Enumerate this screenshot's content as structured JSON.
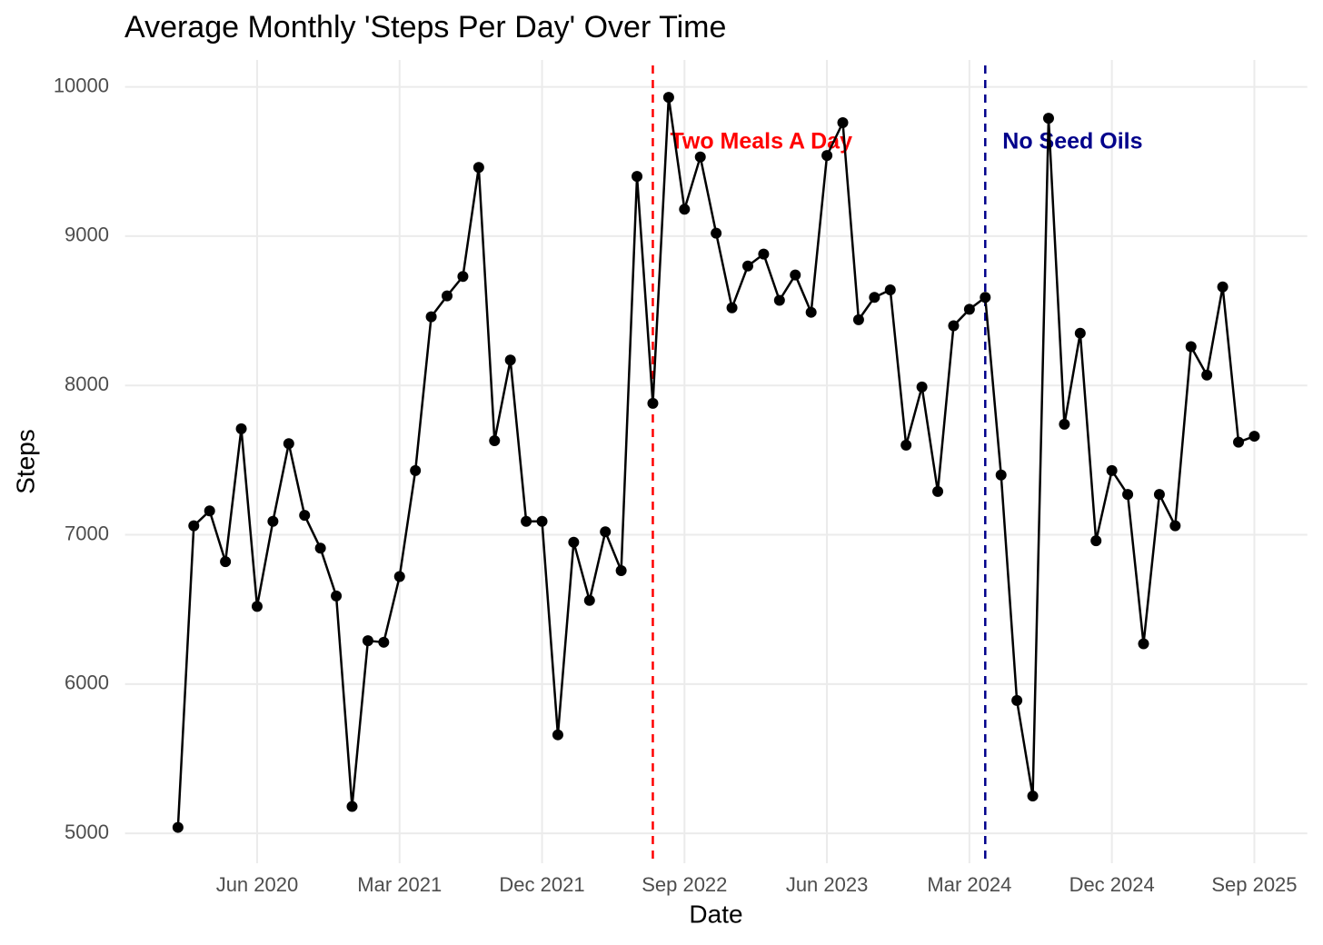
{
  "chart_data": {
    "type": "line",
    "title": "Average Monthly 'Steps Per Day' Over Time",
    "x_label": "Date",
    "y_label": "Steps",
    "x": [
      "2020-01",
      "2020-02",
      "2020-03",
      "2020-04",
      "2020-05",
      "2020-06",
      "2020-07",
      "2020-08",
      "2020-09",
      "2020-10",
      "2020-11",
      "2020-12",
      "2021-01",
      "2021-02",
      "2021-03",
      "2021-04",
      "2021-05",
      "2021-06",
      "2021-07",
      "2021-08",
      "2021-09",
      "2021-10",
      "2021-11",
      "2021-12",
      "2022-01",
      "2022-02",
      "2022-03",
      "2022-04",
      "2022-05",
      "2022-06",
      "2022-07",
      "2022-08",
      "2022-09",
      "2022-10",
      "2022-11",
      "2022-12",
      "2023-01",
      "2023-02",
      "2023-03",
      "2023-04",
      "2023-05",
      "2023-06",
      "2023-07",
      "2023-08",
      "2023-09",
      "2023-10",
      "2023-11",
      "2023-12",
      "2024-01",
      "2024-02",
      "2024-03",
      "2024-04",
      "2024-05",
      "2024-06",
      "2024-07",
      "2024-08",
      "2024-09",
      "2024-10",
      "2024-11",
      "2024-12",
      "2025-01",
      "2025-02",
      "2025-03",
      "2025-04",
      "2025-05",
      "2025-06",
      "2025-07",
      "2025-08",
      "2025-09"
    ],
    "values": [
      5040,
      7060,
      7160,
      6820,
      7710,
      6520,
      7090,
      7610,
      7130,
      6910,
      6590,
      5180,
      6290,
      6280,
      6720,
      7430,
      8460,
      8600,
      8730,
      9460,
      7630,
      8170,
      7090,
      7090,
      5660,
      6950,
      6560,
      7020,
      6760,
      9400,
      7880,
      9930,
      9180,
      9530,
      9020,
      8520,
      8800,
      8880,
      8570,
      8740,
      8490,
      9540,
      9760,
      8440,
      8590,
      8640,
      7600,
      7990,
      7290,
      8400,
      8510,
      8590,
      7400,
      5890,
      5250,
      9790,
      7740,
      8350,
      6960,
      7430,
      7270,
      6270,
      7270,
      7060,
      8260,
      8070,
      8660,
      7620,
      7660
    ],
    "color": "#000000",
    "xlim": [
      "2019-10",
      "2025-12"
    ],
    "xticks": [
      {
        "value": "2020-06",
        "label": "Jun 2020"
      },
      {
        "value": "2021-03",
        "label": "Mar 2021"
      },
      {
        "value": "2021-12",
        "label": "Dec 2021"
      },
      {
        "value": "2022-09",
        "label": "Sep 2022"
      },
      {
        "value": "2023-06",
        "label": "Jun 2023"
      },
      {
        "value": "2024-03",
        "label": "Mar 2024"
      },
      {
        "value": "2024-12",
        "label": "Dec 2024"
      },
      {
        "value": "2025-09",
        "label": "Sep 2025"
      }
    ],
    "ylim": [
      4800,
      10180
    ],
    "yticks": [
      5000,
      6000,
      7000,
      8000,
      9000,
      10000
    ],
    "grid": true,
    "annotations": [
      {
        "x": "2022-07",
        "text": "Two Meals A Day",
        "color": "#ff0000"
      },
      {
        "x": "2024-04",
        "text": "No Seed Oils",
        "color": "#00008b"
      }
    ]
  }
}
